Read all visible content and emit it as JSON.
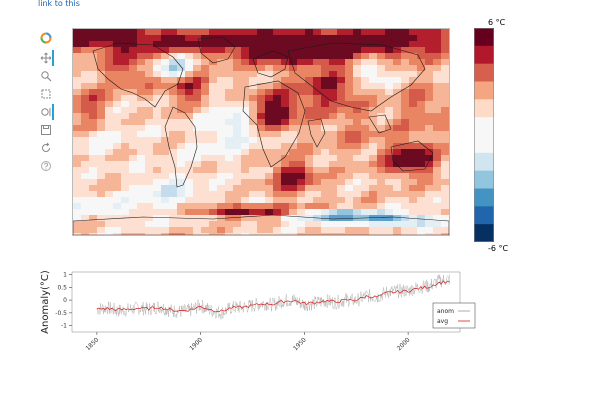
{
  "link": {
    "label": "link to this"
  },
  "toolbar": {
    "icons": [
      "logo-icon",
      "pan-icon",
      "box-zoom-icon",
      "box-select-icon",
      "wheel-zoom-icon",
      "save-icon",
      "reset-icon",
      "help-icon"
    ]
  },
  "colors": {
    "warm": [
      "#fde0d2",
      "#f6b597",
      "#ea8563",
      "#d45a49",
      "#b31f2d",
      "#6b0a20"
    ],
    "cool": [
      "#e3eef5",
      "#c4dcec",
      "#93c4de",
      "#5d9fcb",
      "#2b6fae",
      "#103a74"
    ],
    "neutral": "#f7f7f7",
    "series_anom": "#9a9a9a",
    "series_avg": "#d42020"
  },
  "colorbar": {
    "max_label": "6 °C",
    "min_label": "-6 °C",
    "steps": [
      "#67001f",
      "#b2182b",
      "#d6604d",
      "#f4a582",
      "#fddbc7",
      "#f7f7f7",
      "#f7f7f7",
      "#d1e5f0",
      "#92c5de",
      "#4393c3",
      "#2166ac",
      "#053061"
    ]
  },
  "chart_data": {
    "type": "line",
    "title": "",
    "xlabel": "",
    "ylabel": "Anomaly(°C)",
    "xlim": [
      1838,
      2025
    ],
    "ylim": [
      -1.25,
      1.1
    ],
    "x_ticks": [
      1850,
      1900,
      1950,
      2000
    ],
    "y_ticks": [
      -1,
      -0.5,
      0,
      0.5,
      1
    ],
    "y_tick_labels": [
      "-1",
      "-0.5",
      "0",
      "0.5",
      "1"
    ],
    "legend": {
      "position": "bottom-right",
      "entries": [
        "anom",
        "avg"
      ]
    },
    "series": [
      {
        "name": "anom",
        "style": "thin gray, monthly spread",
        "x": [
          1850,
          1855,
          1860,
          1865,
          1870,
          1875,
          1880,
          1885,
          1890,
          1895,
          1900,
          1905,
          1910,
          1915,
          1920,
          1925,
          1930,
          1935,
          1940,
          1945,
          1950,
          1955,
          1960,
          1965,
          1970,
          1975,
          1980,
          1985,
          1990,
          1995,
          2000,
          2005,
          2010,
          2015,
          2020
        ],
        "y": [
          -0.35,
          -0.3,
          -0.42,
          -0.38,
          -0.3,
          -0.36,
          -0.25,
          -0.4,
          -0.45,
          -0.4,
          -0.2,
          -0.42,
          -0.5,
          -0.3,
          -0.28,
          -0.22,
          -0.12,
          -0.18,
          -0.02,
          0.0,
          -0.18,
          -0.12,
          -0.02,
          -0.1,
          0.02,
          -0.02,
          0.18,
          0.12,
          0.32,
          0.35,
          0.38,
          0.5,
          0.55,
          0.75,
          0.82
        ]
      },
      {
        "name": "avg",
        "style": "thin red, smoothed",
        "x": [
          1850,
          1855,
          1860,
          1865,
          1870,
          1875,
          1880,
          1885,
          1890,
          1895,
          1900,
          1905,
          1910,
          1915,
          1920,
          1925,
          1930,
          1935,
          1940,
          1945,
          1950,
          1955,
          1960,
          1965,
          1970,
          1975,
          1980,
          1985,
          1990,
          1995,
          2000,
          2005,
          2010,
          2015,
          2020
        ],
        "y": [
          -0.35,
          -0.33,
          -0.38,
          -0.36,
          -0.32,
          -0.34,
          -0.28,
          -0.38,
          -0.42,
          -0.38,
          -0.25,
          -0.38,
          -0.44,
          -0.3,
          -0.28,
          -0.22,
          -0.14,
          -0.16,
          -0.05,
          -0.02,
          -0.14,
          -0.1,
          -0.03,
          -0.07,
          0.0,
          0.0,
          0.15,
          0.12,
          0.28,
          0.32,
          0.36,
          0.46,
          0.52,
          0.68,
          0.74
        ]
      }
    ]
  }
}
